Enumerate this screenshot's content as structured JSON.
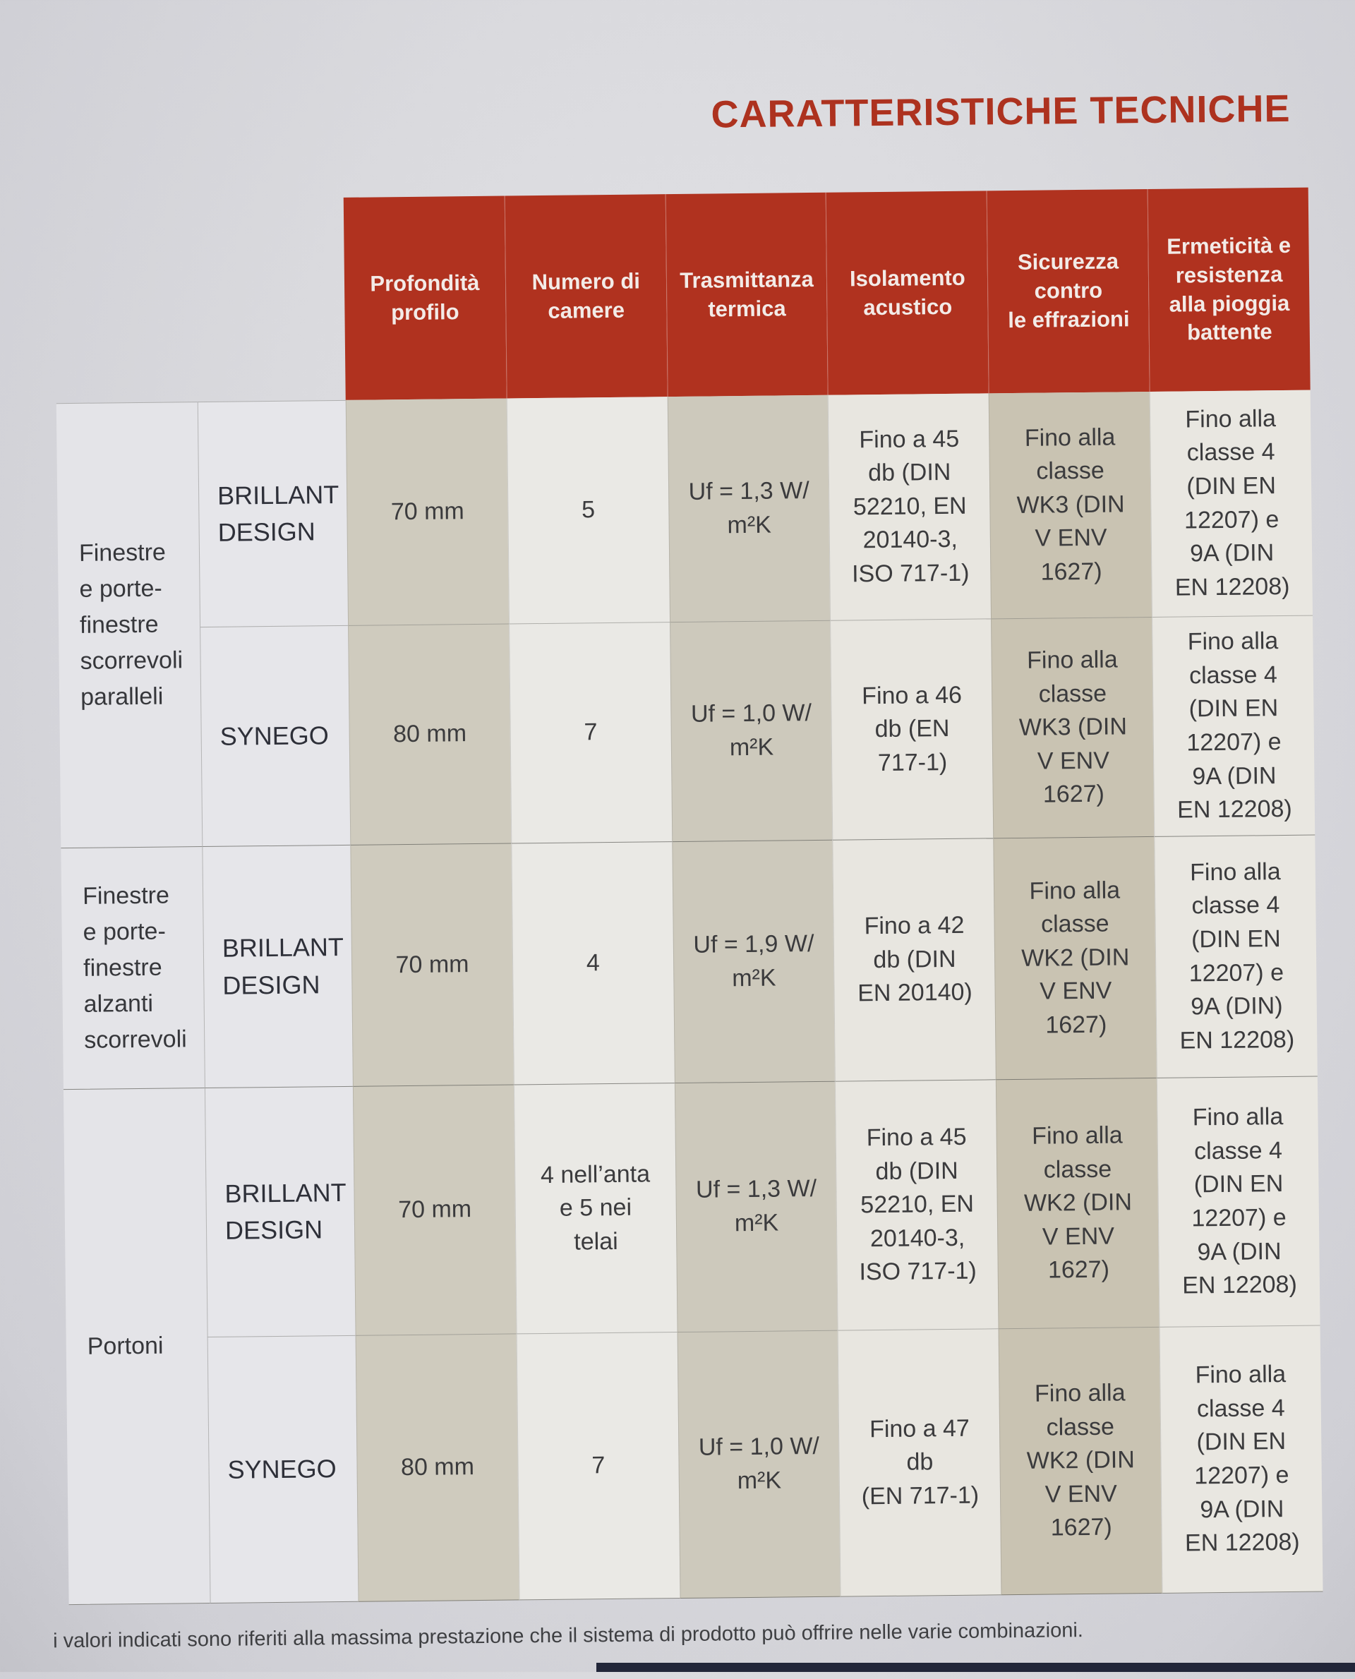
{
  "page": {
    "title": "CARATTERISTICHE TECNICHE",
    "footnote": "i valori indicati sono riferiti alla massima prestazione che il sistema di prodotto può offrire nelle varie combinazioni.",
    "colors": {
      "accent_red": "#b0321f",
      "header_text": "#f3ebe7",
      "band_beige": "#cfcbbe",
      "band_dark_beige": "#c9c3b2",
      "band_light": "#e8e6e0",
      "paper": "#dadade",
      "bottom_strip": "#222639"
    }
  },
  "table": {
    "headers": [
      "Profondità\nprofilo",
      "Numero di\ncamere",
      "Trasmittanza\ntermica",
      "Isolamento\nacustico",
      "Sicurezza\ncontro\nle effrazioni",
      "Ermeticità e\nresistenza\nalla pioggia\nbattente"
    ],
    "groups": [
      {
        "label": "Finestre\ne porte-\nfinestre\nscorrevoli\nparalleli",
        "rows": [
          {
            "product": "BRILLANT\nDESIGN",
            "cells": [
              "70 mm",
              "5",
              "Uf = 1,3 W/\nm²K",
              "Fino a 45\ndb (DIN\n52210, EN\n20140-3,\nISO 717-1)",
              "Fino alla\nclasse\nWK3 (DIN\nV ENV\n1627)",
              "Fino alla\nclasse 4\n(DIN EN\n12207) e\n9A (DIN\nEN 12208)"
            ]
          },
          {
            "product": "SYNEGO",
            "cells": [
              "80 mm",
              "7",
              "Uf = 1,0 W/\nm²K",
              "Fino a 46\ndb (EN\n717-1)",
              "Fino alla\nclasse\nWK3 (DIN\nV ENV\n1627)",
              "Fino alla\nclasse 4\n(DIN EN\n12207) e\n9A (DIN\nEN 12208)"
            ]
          }
        ]
      },
      {
        "label": "Finestre\ne porte-\nfinestre\nalzanti\nscorrevoli",
        "rows": [
          {
            "product": "BRILLANT\nDESIGN",
            "cells": [
              "70 mm",
              "4",
              "Uf = 1,9 W/\nm²K",
              "Fino a 42\ndb (DIN\nEN 20140)",
              "Fino alla\nclasse\nWK2 (DIN\nV ENV\n1627)",
              "Fino alla\nclasse 4\n(DIN EN\n12207) e\n9A (DIN)\nEN 12208)"
            ]
          }
        ]
      },
      {
        "label": "Portoni",
        "rows": [
          {
            "product": "BRILLANT\nDESIGN",
            "cells": [
              "70 mm",
              "4 nell’anta\ne 5 nei\ntelai",
              "Uf = 1,3 W/\nm²K",
              "Fino a 45\ndb (DIN\n52210, EN\n20140-3,\nISO 717-1)",
              "Fino alla\nclasse\nWK2 (DIN\nV ENV\n1627)",
              "Fino alla\nclasse 4\n(DIN EN\n12207) e\n9A (DIN\nEN 12208)"
            ]
          },
          {
            "product": "SYNEGO",
            "cells": [
              "80 mm",
              "7",
              "Uf = 1,0 W/\nm²K",
              "Fino a 47\ndb\n(EN 717-1)",
              "Fino alla\nclasse\nWK2 (DIN\nV ENV\n1627)",
              "Fino alla\nclasse 4\n(DIN EN\n12207) e\n9A (DIN\nEN 12208)"
            ]
          }
        ]
      }
    ]
  }
}
